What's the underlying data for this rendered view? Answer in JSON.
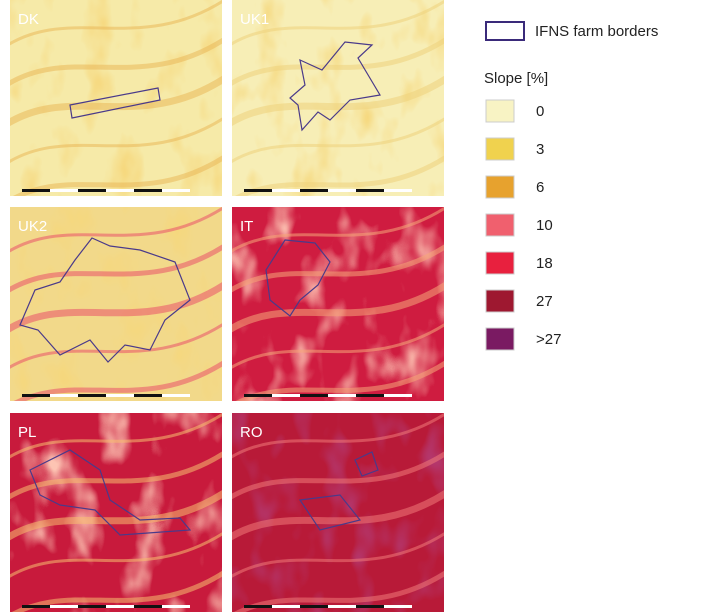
{
  "panels": [
    {
      "label": "DK"
    },
    {
      "label": "UK1"
    },
    {
      "label": "UK2"
    },
    {
      "label": "IT"
    },
    {
      "label": "PL"
    },
    {
      "label": "RO"
    }
  ],
  "legend": {
    "border_label": "IFNS farm borders",
    "title": "Slope [%]",
    "classes": [
      {
        "label": "0",
        "color": "#f8f3c4"
      },
      {
        "label": "3",
        "color": "#f0d24e"
      },
      {
        "label": "6",
        "color": "#e7a22e"
      },
      {
        "label": "10",
        "color": "#f0606e"
      },
      {
        "label": "18",
        "color": "#e8203e"
      },
      {
        "label": "27",
        "color": "#9e1830"
      },
      {
        "label": ">27",
        "color": "#7a1a62"
      }
    ]
  }
}
